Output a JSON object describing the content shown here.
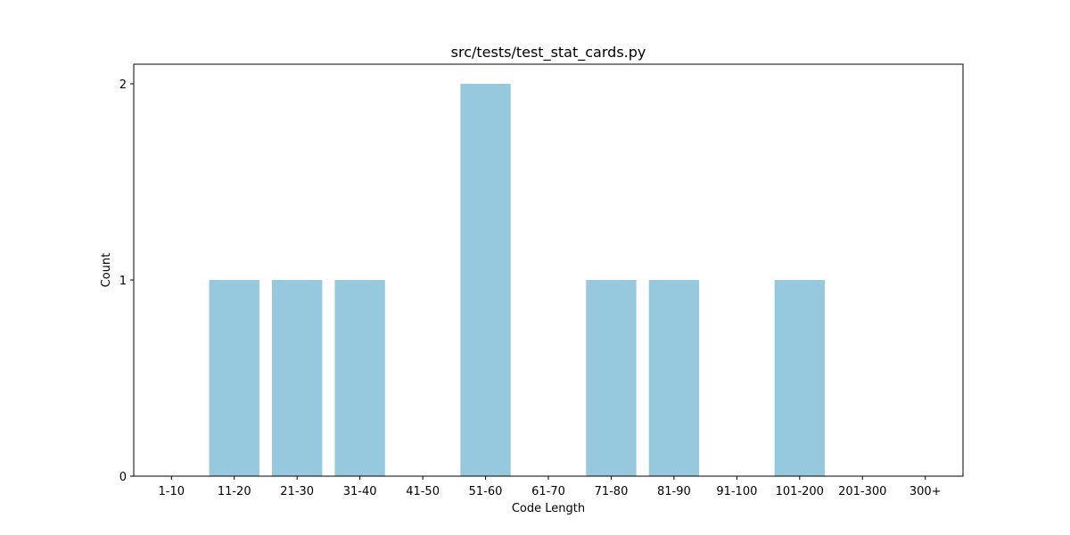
{
  "chart_data": {
    "type": "bar",
    "title": "src/tests/test_stat_cards.py",
    "xlabel": "Code Length",
    "ylabel": "Count",
    "categories": [
      "1-10",
      "11-20",
      "21-30",
      "31-40",
      "41-50",
      "51-60",
      "61-70",
      "71-80",
      "81-90",
      "91-100",
      "101-200",
      "201-300",
      "300+"
    ],
    "values": [
      0,
      1,
      1,
      1,
      0,
      2,
      0,
      1,
      1,
      0,
      1,
      0,
      0
    ],
    "yticks": [
      0,
      1,
      2
    ],
    "ylim": [
      0,
      2.1
    ],
    "grid": false,
    "legend": "none",
    "bar_color": "#96c9dd"
  }
}
